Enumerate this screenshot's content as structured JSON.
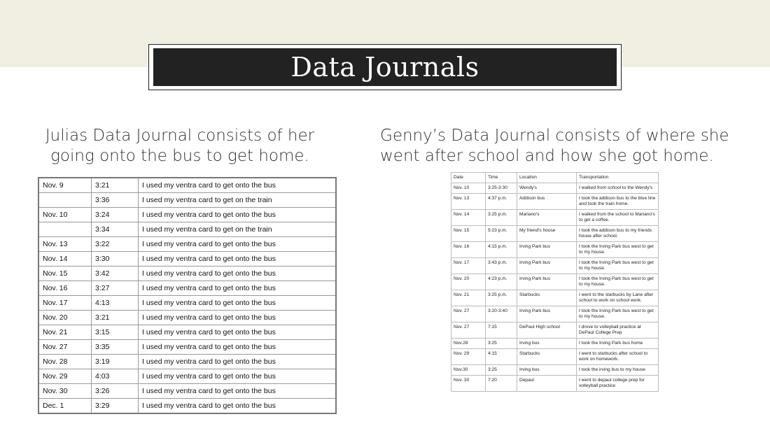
{
  "title": "Data Journals",
  "julia": {
    "caption": "Julias Data Journal consists of her going onto the bus to get home.",
    "rows": [
      {
        "date": "Nov. 9",
        "time": "3:21",
        "note": "I used my ventra card to get onto the bus"
      },
      {
        "date": "",
        "time": "3:36",
        "note": "I used my ventra card to get on the train"
      },
      {
        "date": "Nov. 10",
        "time": "3:24",
        "note": "I used my ventra card to get onto the bus"
      },
      {
        "date": "",
        "time": "3:34",
        "note": "I used my ventra card to get on the train"
      },
      {
        "date": "Nov. 13",
        "time": "3:22",
        "note": "I used my ventra card to get onto the bus"
      },
      {
        "date": "Nov. 14",
        "time": "3:30",
        "note": "I used my ventra card to get onto the bus"
      },
      {
        "date": "Nov. 15",
        "time": "3:42",
        "note": "I used my ventra card to get onto the bus"
      },
      {
        "date": "Nov. 16",
        "time": "3:27",
        "note": "I used my ventra card to get onto the bus"
      },
      {
        "date": "Nov. 17",
        "time": "4:13",
        "note": "I used my ventra card to get onto the bus"
      },
      {
        "date": "Nov. 20",
        "time": "3:21",
        "note": "I used my ventra card to get onto the bus"
      },
      {
        "date": "Nov. 21",
        "time": "3:15",
        "note": "I used my ventra card to get onto the bus"
      },
      {
        "date": "Nov. 27",
        "time": "3:35",
        "note": "I used my ventra card to get onto the bus"
      },
      {
        "date": "Nov. 28",
        "time": "3:19",
        "note": "I used my ventra card to get onto the bus"
      },
      {
        "date": "Nov. 29",
        "time": "4:03",
        "note": "I used my ventra card to get onto the bus"
      },
      {
        "date": "Nov. 30",
        "time": "3:26",
        "note": "I used my ventra card to get onto the bus"
      },
      {
        "date": "Dec. 1",
        "time": "3:29",
        "note": "I used my ventra card to get onto the bus"
      }
    ]
  },
  "genny": {
    "caption": "Genny’s Data Journal consists of where she went after school and how she got home.",
    "headers": [
      "Date",
      "Time",
      "Location",
      "Transportation"
    ],
    "rows": [
      {
        "date": "Nov. 10",
        "time": "3:25-3:30",
        "location": "Wendy's",
        "transport": "I walked from school to the Wendy's"
      },
      {
        "date": "Nov. 13",
        "time": "4:37 p.m.",
        "location": "Addison bus",
        "transport": "I took the addison bus to the blue line and took the train home."
      },
      {
        "date": "Nov. 14",
        "time": "3:25 p.m.",
        "location": "Mariano's",
        "transport": "I walked from the school to Mariano's to get a coffee."
      },
      {
        "date": "Nov. 15",
        "time": "5:23 p.m.",
        "location": "My friend's house",
        "transport": "I took the addison bus to my friends house after school."
      },
      {
        "date": "Nov. 16",
        "time": "4:15 p.m.",
        "location": "Irving Park bus",
        "transport": "I took the Irving Park bus west to get to my house."
      },
      {
        "date": "Nov. 17",
        "time": "3:43 p.m.",
        "location": "Irving Park bus",
        "transport": "I took the Irving Park bus west to get to my house."
      },
      {
        "date": "Nov. 20",
        "time": "4:23 p.m.",
        "location": "Irving Park bus",
        "transport": "I took the Irving Park bus west to get to my house."
      },
      {
        "date": "Nov. 21",
        "time": "3:25 p.m.",
        "location": "Starbucks",
        "transport": "I went to the starbucks by Lane after school to work on school work."
      },
      {
        "date": "Nov. 27",
        "time": "3:20-3:40",
        "location": "Irving Park bus",
        "transport": "I took the Irving Park bus west to get to my house."
      },
      {
        "date": "Nov. 27",
        "time": "7:15",
        "location": "DePaul High school",
        "transport": "I drove to volleyball practice at DePaul College Prep"
      },
      {
        "date": "Nov.28",
        "time": "3:25",
        "location": "Irving bus",
        "transport": "I took the Irving Park bus home"
      },
      {
        "date": "Nov. 29",
        "time": "4:15",
        "location": "Starbucks",
        "transport": "I went to starbucks after school to work on homework."
      },
      {
        "date": "Nov.30",
        "time": "3:25",
        "location": "Irving bus",
        "transport": "I took the irving bus to my house"
      },
      {
        "date": "Nov. 30",
        "time": "7:20",
        "location": "Depaul",
        "transport": "I went to depaul college prep for volleyball practice"
      }
    ]
  }
}
